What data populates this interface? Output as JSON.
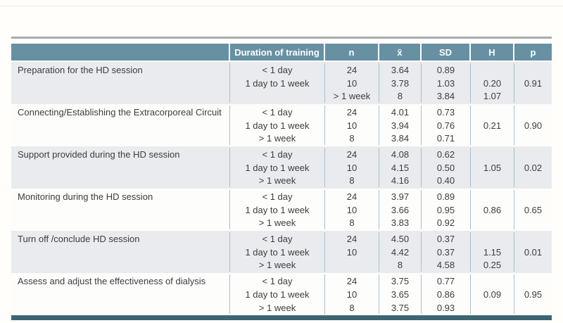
{
  "colors": {
    "header_teal": "#6791a3",
    "bottom_bar_teal": "#3c6573",
    "group_shade_gray": "#e9ebee",
    "group_shade_white": "#fdfdfc",
    "column_divider": "#a9c0cc",
    "top_rule_gray": "#a8abad",
    "body_text": "#3d3d3d",
    "header_text": "#ffffff"
  },
  "table": {
    "columns": {
      "activity": "",
      "duration": "Duration of training",
      "n": "n",
      "xbar": "x̄",
      "sd": "SD",
      "h": "H",
      "p": "p"
    },
    "groups": [
      {
        "label": "Preparation for the HD session",
        "rows": [
          {
            "duration": "< 1 day",
            "n": "24",
            "xbar": "3.64",
            "sd": "0.89",
            "h": "",
            "p": ""
          },
          {
            "duration": "1 day to 1 week",
            "n": "10",
            "xbar": "3.78",
            "sd": "1.03",
            "h": "0.20",
            "p": "0.91"
          },
          {
            "duration": "",
            "n": "> 1 week",
            "xbar": "8",
            "sd": "3.84",
            "h": "1.07",
            "p": ""
          }
        ]
      },
      {
        "label": "Connecting/Establishing the Extracorporeal Circuit",
        "rows": [
          {
            "duration": "< 1 day",
            "n": "24",
            "xbar": "4.01",
            "sd": "0.73",
            "h": "",
            "p": ""
          },
          {
            "duration": "1 day to 1 week",
            "n": "10",
            "xbar": "3.94",
            "sd": "0.76",
            "h": "0.21",
            "p": "0.90"
          },
          {
            "duration": "> 1 week",
            "n": "8",
            "xbar": "3.84",
            "sd": "0.71",
            "h": "",
            "p": ""
          }
        ]
      },
      {
        "label": "Support provided during the HD session",
        "rows": [
          {
            "duration": "< 1 day",
            "n": "24",
            "xbar": "4.08",
            "sd": "0.62",
            "h": "",
            "p": ""
          },
          {
            "duration": "1 day to 1 week",
            "n": "10",
            "xbar": "4.15",
            "sd": "0.50",
            "h": "1.05",
            "p": "0.02"
          },
          {
            "duration": "> 1 week",
            "n": "8",
            "xbar": "4.16",
            "sd": "0.40",
            "h": "",
            "p": ""
          }
        ]
      },
      {
        "label": "Monitoring during the HD session",
        "rows": [
          {
            "duration": "< 1 day",
            "n": "24",
            "xbar": "3.97",
            "sd": "0.89",
            "h": "",
            "p": ""
          },
          {
            "duration": "1 day to 1 week",
            "n": "10",
            "xbar": "3.66",
            "sd": "0.95",
            "h": "0.86",
            "p": "0.65"
          },
          {
            "duration": "> 1 week",
            "n": "8",
            "xbar": "3.83",
            "sd": "0.92",
            "h": "",
            "p": ""
          }
        ]
      },
      {
        "label": "Turn off /conclude HD session",
        "rows": [
          {
            "duration": "< 1 day",
            "n": "24",
            "xbar": "4.50",
            "sd": "0.37",
            "h": "",
            "p": ""
          },
          {
            "duration": "1 day to 1 week",
            "n": "10",
            "xbar": "4.42",
            "sd": "0.37",
            "h": "1.15",
            "p": "0.01"
          },
          {
            "duration": "> 1 week",
            "n": "",
            "xbar": "8",
            "sd": "4.58",
            "h": "0.25",
            "p": ""
          }
        ]
      },
      {
        "label": "Assess and adjust the effectiveness of dialysis",
        "rows": [
          {
            "duration": "< 1 day",
            "n": "24",
            "xbar": "3.75",
            "sd": "0.77",
            "h": "",
            "p": ""
          },
          {
            "duration": "1 day to 1 week",
            "n": "10",
            "xbar": "3.65",
            "sd": "0.86",
            "h": "0.09",
            "p": "0.95"
          },
          {
            "duration": "> 1 week",
            "n": "8",
            "xbar": "3.75",
            "sd": "0.93",
            "h": "",
            "p": ""
          }
        ]
      }
    ]
  }
}
